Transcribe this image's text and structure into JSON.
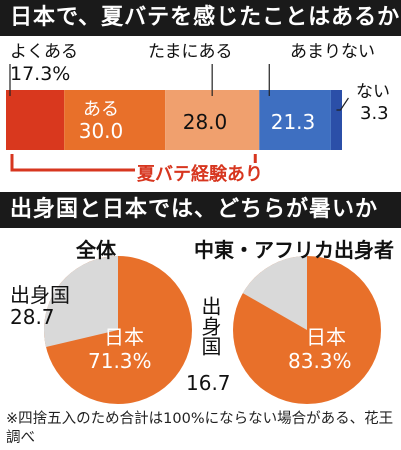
{
  "colors": {
    "red": "#d9381e",
    "orange": "#e8702a",
    "light_orange": "#f0a06e",
    "blue": "#3e6fc1",
    "dark_blue": "#2b4fa8",
    "grey": "#d9d9d9",
    "bracket": "#d7361f"
  },
  "chart_data": [
    {
      "type": "bar",
      "title": "日本で、夏バテを感じたことはあるか",
      "categories": [
        "よくある",
        "ある",
        "たまにある",
        "あまりない",
        "ない"
      ],
      "values": [
        17.3,
        30.0,
        28.0,
        21.3,
        3.3
      ],
      "value_labels": [
        "17.3%",
        "30.0",
        "28.0",
        "21.3",
        "3.3"
      ],
      "bracket_label": "夏バテ経験あり",
      "stacked": true
    },
    {
      "type": "pie",
      "title": "出身国と日本では、どちらが暑いか",
      "subtitle": "全体",
      "slices": [
        {
          "label": "日本",
          "value": 71.3,
          "value_label": "71.3%"
        },
        {
          "label": "出身国",
          "value": 28.7,
          "value_label": "28.7"
        }
      ]
    },
    {
      "type": "pie",
      "subtitle": "中東・アフリカ出身者",
      "slices": [
        {
          "label": "日本",
          "value": 83.3,
          "value_label": "83.3%"
        },
        {
          "label": "出身国",
          "value": 16.7,
          "value_label": "16.7"
        }
      ]
    }
  ],
  "footnote": "※四捨五入のため合計は100%にならない場合がある、花王調べ"
}
